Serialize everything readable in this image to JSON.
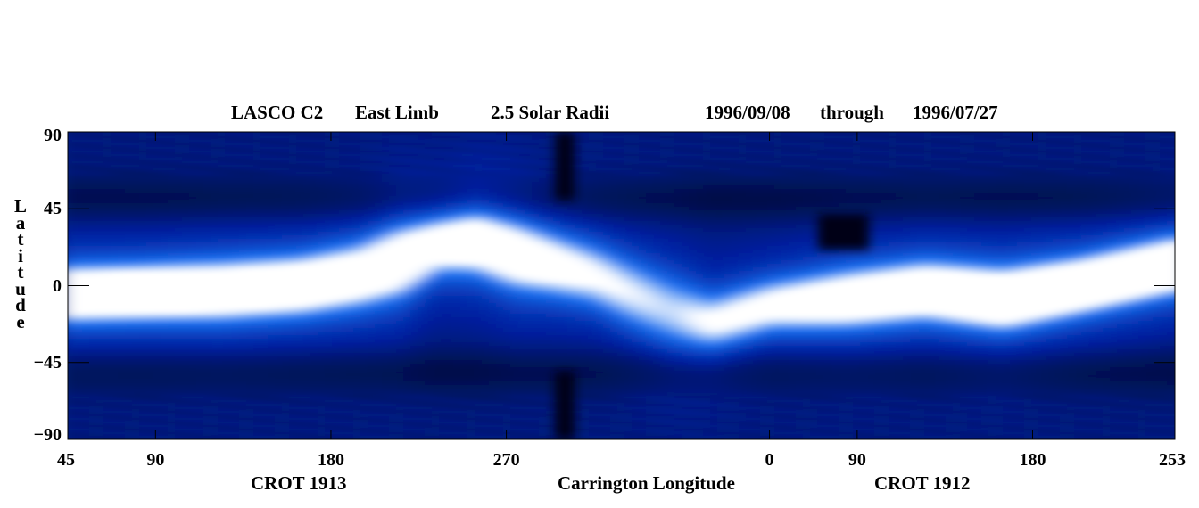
{
  "chart_data": {
    "type": "heatmap",
    "title_parts": {
      "instrument": "LASCO C2",
      "limb": "East Limb",
      "radius": "2.5 Solar Radii",
      "date_start": "1996/09/08",
      "through": "through",
      "date_end": "1996/07/27"
    },
    "xlabel": "Carrington Longitude",
    "x_sublabels": [
      "CROT 1913",
      "CROT 1912"
    ],
    "ylabel": "Latitude",
    "ylim": [
      -90,
      90
    ],
    "y_ticks": [
      "90",
      "45",
      "0",
      "−45",
      "−90"
    ],
    "y_tick_values": [
      90,
      45,
      0,
      -45,
      -90
    ],
    "x_tick_labels": [
      "45",
      "90",
      "180",
      "270",
      "0",
      "90",
      "180",
      "253"
    ],
    "x_tick_plot_degrees": [
      0,
      45,
      135,
      225,
      360,
      405,
      495,
      568
    ],
    "x_range_plot_degrees": [
      0,
      568
    ],
    "colormap": [
      "#000a30",
      "#0020a0",
      "#1a70f0",
      "#ffffff"
    ],
    "bright_band": {
      "plot_degrees": [
        0,
        40,
        80,
        120,
        150,
        170,
        190,
        210,
        230,
        250,
        270,
        290,
        310,
        330,
        360,
        400,
        440,
        480,
        520,
        568
      ],
      "center_latitude": [
        -5,
        -4,
        -3,
        0,
        6,
        14,
        24,
        26,
        18,
        12,
        6,
        -5,
        -15,
        -22,
        -12,
        -8,
        -3,
        -8,
        0,
        12
      ],
      "width_deg": [
        11,
        11,
        12,
        12,
        13,
        14,
        12,
        13,
        14,
        13,
        13,
        14,
        15,
        12,
        11,
        12,
        12,
        12,
        11,
        11
      ],
      "intensity": [
        0.95,
        0.97,
        0.9,
        0.9,
        0.85,
        0.9,
        0.8,
        0.88,
        0.85,
        0.75,
        0.65,
        0.6,
        0.55,
        0.65,
        0.7,
        0.85,
        0.9,
        1.0,
        1.0,
        1.0
      ]
    },
    "data_gaps": [
      {
        "plot_degrees": [
          250,
          260
        ],
        "latitude": [
          50,
          90
        ]
      },
      {
        "plot_degrees": [
          250,
          260
        ],
        "latitude": [
          -90,
          -50
        ]
      },
      {
        "plot_degrees": [
          385,
          411
        ],
        "latitude": [
          21,
          42
        ]
      }
    ]
  }
}
